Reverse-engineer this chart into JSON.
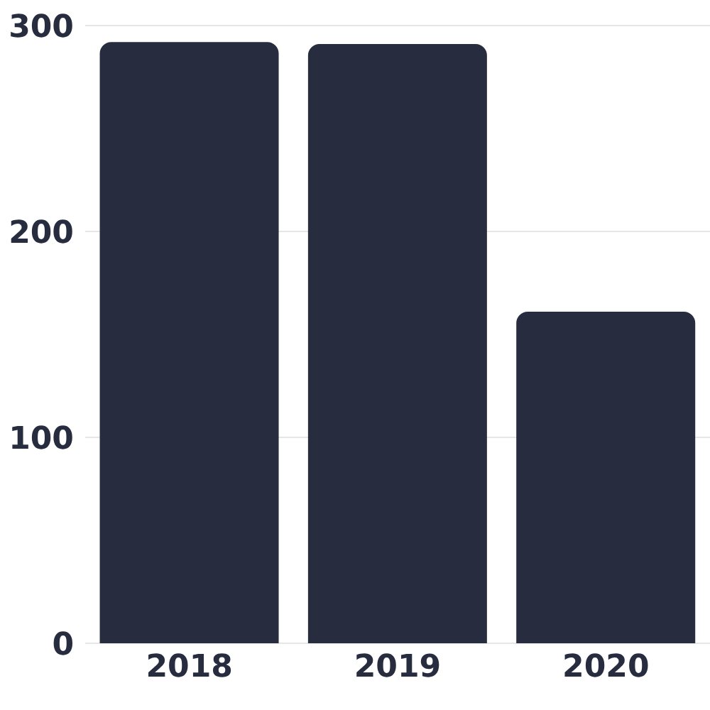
{
  "chart_data": {
    "type": "bar",
    "categories": [
      "2018",
      "2019",
      "2020"
    ],
    "values": [
      292,
      291,
      161
    ],
    "color": "#272d3f",
    "ylim": [
      0,
      300
    ],
    "yticks": [
      0,
      100,
      200,
      300
    ],
    "grid": "y"
  }
}
